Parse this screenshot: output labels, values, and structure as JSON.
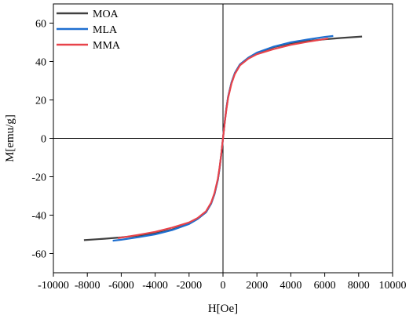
{
  "chart_data": {
    "type": "line",
    "xlabel": "H[Oe]",
    "ylabel": "M[emu/g]",
    "xlim": [
      -10000,
      10000
    ],
    "ylim": [
      -70,
      70
    ],
    "xticks": [
      -10000,
      -8000,
      -6000,
      -4000,
      -2000,
      0,
      2000,
      4000,
      6000,
      8000,
      10000
    ],
    "yticks": [
      -60,
      -40,
      -20,
      0,
      20,
      40,
      60
    ],
    "grid": false,
    "zero_lines": true,
    "legend_position": "top-left",
    "series": [
      {
        "name": "MOA",
        "color": "#404040",
        "x": [
          -8200,
          -7000,
          -6000,
          -5000,
          -4000,
          -3000,
          -2000,
          -1500,
          -1000,
          -700,
          -500,
          -300,
          -200,
          -100,
          -50,
          0,
          50,
          100,
          200,
          300,
          500,
          700,
          1000,
          1500,
          2000,
          3000,
          4000,
          5000,
          6000,
          7000,
          8200
        ],
        "y": [
          -53,
          -52.3,
          -51.6,
          -50.7,
          -49.5,
          -47.5,
          -44.5,
          -42,
          -38.5,
          -34,
          -29,
          -21.5,
          -15.5,
          -8.5,
          -4.3,
          0,
          4.3,
          8.5,
          15.5,
          21.5,
          29,
          34,
          38.5,
          42,
          44.5,
          47.5,
          49.5,
          50.7,
          51.6,
          52.3,
          53
        ]
      },
      {
        "name": "MLA",
        "color": "#1f6fd0",
        "x": [
          -6500,
          -6000,
          -5000,
          -4000,
          -3000,
          -2000,
          -1500,
          -1000,
          -700,
          -500,
          -300,
          -200,
          -100,
          -50,
          0,
          50,
          100,
          200,
          300,
          500,
          700,
          1000,
          1500,
          2000,
          3000,
          4000,
          5000,
          6000,
          6500
        ],
        "y": [
          -53.3,
          -52.8,
          -51.5,
          -50.0,
          -47.8,
          -44.6,
          -42,
          -38.5,
          -34,
          -29,
          -21.5,
          -15.5,
          -8.5,
          -4.3,
          0,
          4.3,
          8.5,
          15.5,
          21.5,
          29,
          34,
          38.5,
          42,
          44.6,
          47.8,
          50.0,
          51.5,
          52.8,
          53.3
        ]
      },
      {
        "name": "MMA",
        "color": "#e8434a",
        "x": [
          -6200,
          -6000,
          -5000,
          -4000,
          -3000,
          -2000,
          -1500,
          -1000,
          -700,
          -500,
          -300,
          -200,
          -100,
          -50,
          0,
          50,
          100,
          200,
          300,
          500,
          700,
          1000,
          1500,
          2000,
          3000,
          4000,
          5000,
          6000,
          6200
        ],
        "y": [
          -52,
          -51.7,
          -50.3,
          -48.7,
          -46.5,
          -43.8,
          -41.5,
          -38,
          -33.5,
          -28.5,
          -21,
          -15,
          -8.2,
          -4.1,
          0,
          4.1,
          8.2,
          15,
          21,
          28.5,
          33.5,
          38,
          41.5,
          43.8,
          46.5,
          48.7,
          50.3,
          51.7,
          52
        ]
      }
    ]
  }
}
